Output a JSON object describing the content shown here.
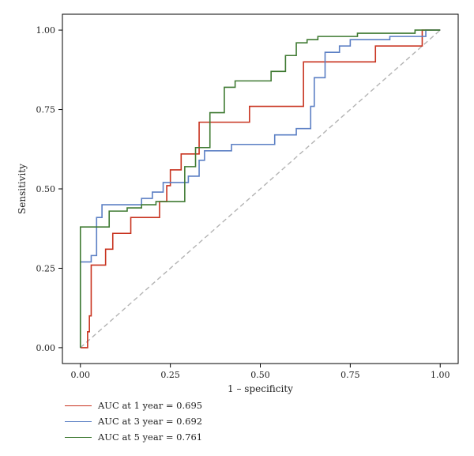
{
  "chart_data": {
    "type": "line",
    "title": "",
    "xlabel": "1 – specificity",
    "ylabel": "Sensitivity",
    "xlim": [
      -0.05,
      1.05
    ],
    "ylim": [
      -0.05,
      1.05
    ],
    "x_ticks": [
      "0.00",
      "0.25",
      "0.50",
      "0.75",
      "1.00"
    ],
    "y_ticks": [
      "0.00",
      "0.25",
      "0.50",
      "0.75",
      "1.00"
    ],
    "grid": false,
    "legend_position": "bottom-left",
    "reference_line": {
      "style": "dashed",
      "color": "#b3b3b3",
      "from": [
        0,
        0
      ],
      "to": [
        1,
        1
      ]
    },
    "series": [
      {
        "name": "AUC at 1 year = 0.695",
        "color": "#c8321e",
        "points": [
          [
            0,
            0
          ],
          [
            0.02,
            0
          ],
          [
            0.02,
            0.05
          ],
          [
            0.025,
            0.05
          ],
          [
            0.025,
            0.1
          ],
          [
            0.03,
            0.1
          ],
          [
            0.03,
            0.26
          ],
          [
            0.07,
            0.26
          ],
          [
            0.07,
            0.31
          ],
          [
            0.09,
            0.31
          ],
          [
            0.09,
            0.36
          ],
          [
            0.14,
            0.36
          ],
          [
            0.14,
            0.41
          ],
          [
            0.22,
            0.41
          ],
          [
            0.22,
            0.46
          ],
          [
            0.24,
            0.46
          ],
          [
            0.24,
            0.51
          ],
          [
            0.25,
            0.51
          ],
          [
            0.25,
            0.56
          ],
          [
            0.28,
            0.56
          ],
          [
            0.28,
            0.61
          ],
          [
            0.33,
            0.61
          ],
          [
            0.33,
            0.71
          ],
          [
            0.47,
            0.71
          ],
          [
            0.47,
            0.76
          ],
          [
            0.62,
            0.76
          ],
          [
            0.62,
            0.9
          ],
          [
            0.82,
            0.9
          ],
          [
            0.82,
            0.95
          ],
          [
            0.95,
            0.95
          ],
          [
            0.95,
            1.0
          ],
          [
            1.0,
            1.0
          ]
        ]
      },
      {
        "name": "AUC at 3 year = 0.692",
        "color": "#5b7fc4",
        "points": [
          [
            0,
            0
          ],
          [
            0,
            0.27
          ],
          [
            0.03,
            0.27
          ],
          [
            0.03,
            0.29
          ],
          [
            0.045,
            0.29
          ],
          [
            0.045,
            0.41
          ],
          [
            0.06,
            0.41
          ],
          [
            0.06,
            0.45
          ],
          [
            0.17,
            0.45
          ],
          [
            0.17,
            0.47
          ],
          [
            0.2,
            0.47
          ],
          [
            0.2,
            0.49
          ],
          [
            0.23,
            0.49
          ],
          [
            0.23,
            0.52
          ],
          [
            0.3,
            0.52
          ],
          [
            0.3,
            0.54
          ],
          [
            0.33,
            0.54
          ],
          [
            0.33,
            0.59
          ],
          [
            0.345,
            0.59
          ],
          [
            0.345,
            0.62
          ],
          [
            0.42,
            0.62
          ],
          [
            0.42,
            0.64
          ],
          [
            0.54,
            0.64
          ],
          [
            0.54,
            0.67
          ],
          [
            0.6,
            0.67
          ],
          [
            0.6,
            0.69
          ],
          [
            0.64,
            0.69
          ],
          [
            0.64,
            0.76
          ],
          [
            0.65,
            0.76
          ],
          [
            0.65,
            0.85
          ],
          [
            0.68,
            0.85
          ],
          [
            0.68,
            0.93
          ],
          [
            0.72,
            0.93
          ],
          [
            0.72,
            0.95
          ],
          [
            0.75,
            0.95
          ],
          [
            0.75,
            0.97
          ],
          [
            0.86,
            0.97
          ],
          [
            0.86,
            0.98
          ],
          [
            0.96,
            0.98
          ],
          [
            0.96,
            1.0
          ],
          [
            1.0,
            1.0
          ]
        ]
      },
      {
        "name": "AUC at 5 year = 0.761",
        "color": "#3f7a32",
        "points": [
          [
            0,
            0
          ],
          [
            0,
            0.38
          ],
          [
            0.08,
            0.38
          ],
          [
            0.08,
            0.43
          ],
          [
            0.13,
            0.43
          ],
          [
            0.13,
            0.44
          ],
          [
            0.17,
            0.44
          ],
          [
            0.17,
            0.45
          ],
          [
            0.21,
            0.45
          ],
          [
            0.21,
            0.46
          ],
          [
            0.29,
            0.46
          ],
          [
            0.29,
            0.57
          ],
          [
            0.32,
            0.57
          ],
          [
            0.32,
            0.63
          ],
          [
            0.36,
            0.63
          ],
          [
            0.36,
            0.74
          ],
          [
            0.4,
            0.74
          ],
          [
            0.4,
            0.82
          ],
          [
            0.43,
            0.82
          ],
          [
            0.43,
            0.84
          ],
          [
            0.53,
            0.84
          ],
          [
            0.53,
            0.87
          ],
          [
            0.57,
            0.87
          ],
          [
            0.57,
            0.92
          ],
          [
            0.6,
            0.92
          ],
          [
            0.6,
            0.96
          ],
          [
            0.63,
            0.96
          ],
          [
            0.63,
            0.97
          ],
          [
            0.66,
            0.97
          ],
          [
            0.66,
            0.98
          ],
          [
            0.77,
            0.98
          ],
          [
            0.77,
            0.99
          ],
          [
            0.93,
            0.99
          ],
          [
            0.93,
            1.0
          ],
          [
            1.0,
            1.0
          ]
        ]
      }
    ]
  }
}
